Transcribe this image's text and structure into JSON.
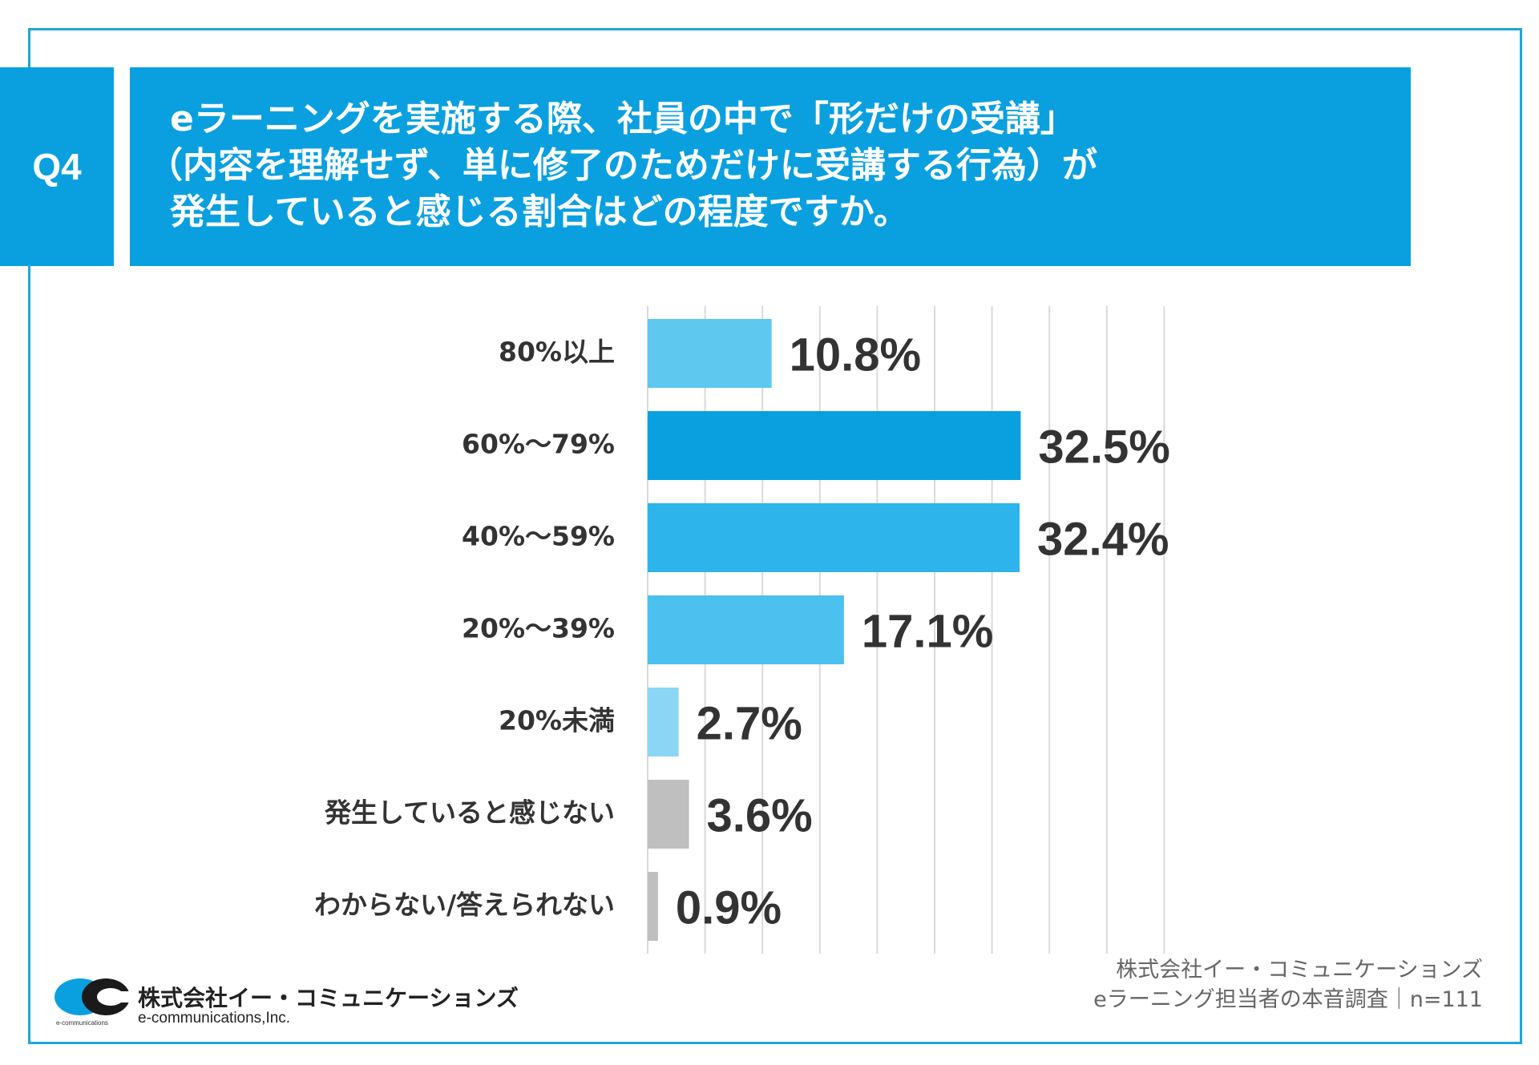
{
  "question": {
    "label": "Q4",
    "lines": [
      "eラーニングを実施する際、社員の中で「形だけの受講」",
      "（内容を理解せず、単に修了のためだけに受講する行為）が",
      "発生していると感じる割合はどの程度ですか。"
    ]
  },
  "chart_data": {
    "type": "bar",
    "orientation": "horizontal",
    "title": "",
    "categories": [
      "80%以上",
      "60%〜79%",
      "40%〜59%",
      "20%〜39%",
      "20%未満",
      "発生していると感じない",
      "わからない/答えられない"
    ],
    "values": [
      10.8,
      32.5,
      32.4,
      17.1,
      2.7,
      3.6,
      0.9
    ],
    "value_labels": [
      "10.8%",
      "32.5%",
      "32.4%",
      "17.1%",
      "2.7%",
      "3.6%",
      "0.9%"
    ],
    "bar_colors": [
      "#5ec8ef",
      "#0aa0e0",
      "#2db4ea",
      "#4cc0ee",
      "#8ad6f4",
      "#bfbfbf",
      "#bfbfbf"
    ],
    "xlim": [
      0,
      45
    ],
    "grid_step": 5,
    "grid": true,
    "xlabel": "",
    "ylabel": ""
  },
  "footer": {
    "company": "株式会社イー・コミュニケーションズ",
    "survey": "eラーニング担当者の本音調査｜n=111"
  },
  "logo": {
    "company_jp": "株式会社イー・コミュニケーションズ",
    "company_en": "e-communications,Inc.",
    "small_text": "e-communications"
  },
  "colors": {
    "accent": "#0aa0e0",
    "frame": "#1ea6dc",
    "grid": "#d9d9d9",
    "label_text": "#333333",
    "value_text": "#333333"
  }
}
